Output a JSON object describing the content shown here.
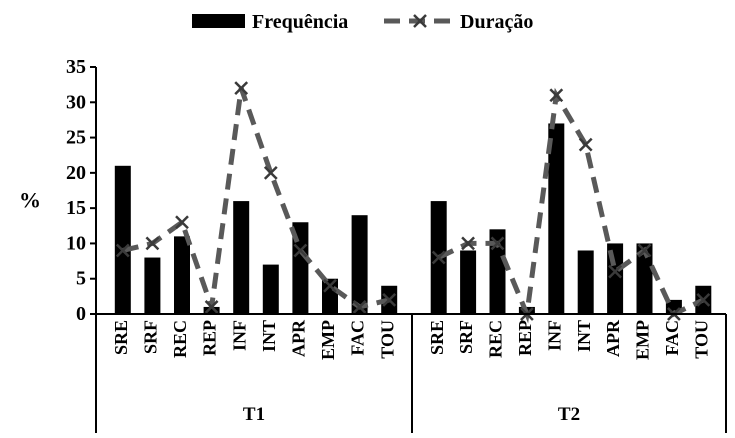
{
  "chart_data": {
    "type": "bar",
    "groups": [
      {
        "label": "T1",
        "categories": [
          "SRE",
          "SRF",
          "REC",
          "REP",
          "INF",
          "INT",
          "APR",
          "EMP",
          "FAC",
          "TOU"
        ]
      },
      {
        "label": "T2",
        "categories": [
          "SRE",
          "SRF",
          "REC",
          "REP",
          "INF",
          "INT",
          "APR",
          "EMP",
          "FAC",
          "TOU"
        ]
      }
    ],
    "series": [
      {
        "name": "Frequência",
        "kind": "bar",
        "color": "#000000",
        "values": [
          [
            21,
            8,
            11,
            1,
            16,
            7,
            13,
            5,
            14,
            4
          ],
          [
            16,
            9,
            12,
            1,
            27,
            9,
            10,
            10,
            2,
            4
          ]
        ]
      },
      {
        "name": "Duração",
        "kind": "line",
        "marker": "x",
        "line_style": "dashed",
        "color": "#595959",
        "values": [
          [
            9,
            10,
            13,
            1,
            32,
            20,
            9,
            4,
            1,
            2
          ],
          [
            8,
            10,
            10,
            0,
            31,
            24,
            6,
            9,
            0,
            2
          ]
        ]
      }
    ],
    "ylabel": "%",
    "ylim": [
      0,
      35
    ],
    "yticks": [
      0,
      5,
      10,
      15,
      20,
      25,
      30,
      35
    ],
    "legend_position": "top-center",
    "grid": false
  }
}
